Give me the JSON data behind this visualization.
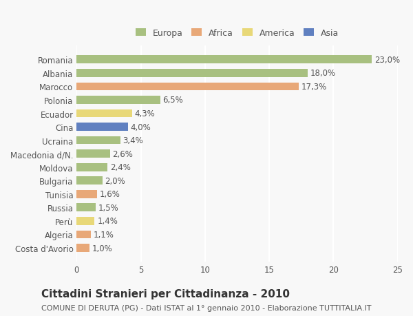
{
  "categories": [
    "Romania",
    "Albania",
    "Marocco",
    "Polonia",
    "Ecuador",
    "Cina",
    "Ucraina",
    "Macedonia d/N.",
    "Moldova",
    "Bulgaria",
    "Tunisia",
    "Russia",
    "Perù",
    "Algeria",
    "Costa d'Avorio"
  ],
  "values": [
    23.0,
    18.0,
    17.3,
    6.5,
    4.3,
    4.0,
    3.4,
    2.6,
    2.4,
    2.0,
    1.6,
    1.5,
    1.4,
    1.1,
    1.0
  ],
  "continents": [
    "Europa",
    "Europa",
    "Africa",
    "Europa",
    "America",
    "Asia",
    "Europa",
    "Europa",
    "Europa",
    "Europa",
    "Africa",
    "Europa",
    "America",
    "Africa",
    "Africa"
  ],
  "continent_colors": {
    "Europa": "#a8c080",
    "Africa": "#e8a878",
    "America": "#e8d878",
    "Asia": "#6080c0"
  },
  "legend_order": [
    "Europa",
    "Africa",
    "America",
    "Asia"
  ],
  "title": "Cittadini Stranieri per Cittadinanza - 2010",
  "subtitle": "COMUNE DI DERUTA (PG) - Dati ISTAT al 1° gennaio 2010 - Elaborazione TUTTITALIA.IT",
  "xlabel": "",
  "xlim": [
    0,
    25
  ],
  "xticks": [
    0,
    5,
    10,
    15,
    20,
    25
  ],
  "background_color": "#f8f8f8",
  "grid_color": "#ffffff",
  "bar_height": 0.6,
  "title_fontsize": 11,
  "subtitle_fontsize": 8,
  "label_fontsize": 8.5,
  "tick_fontsize": 8.5,
  "legend_fontsize": 9
}
